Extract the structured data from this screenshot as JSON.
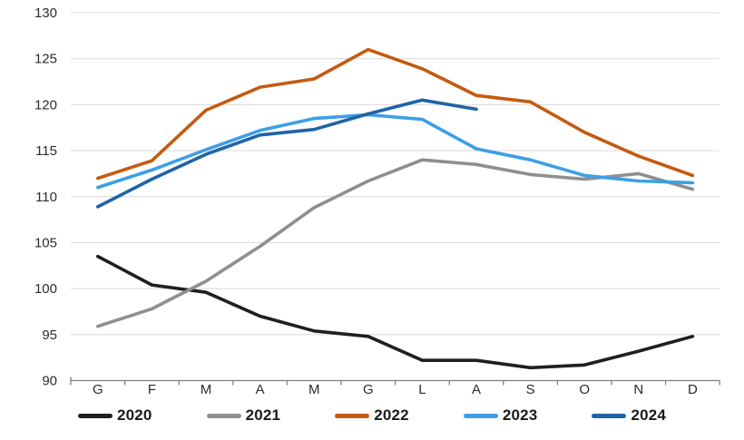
{
  "chart_data": {
    "type": "line",
    "title": "",
    "xlabel": "",
    "ylabel": "",
    "x_categories": [
      "G",
      "F",
      "M",
      "A",
      "M",
      "G",
      "L",
      "A",
      "S",
      "O",
      "N",
      "D"
    ],
    "ylim": [
      90,
      130
    ],
    "y_ticks": [
      90,
      95,
      100,
      105,
      110,
      115,
      120,
      125,
      130
    ],
    "y_tick_labels": [
      "90",
      "95",
      "100",
      "105",
      "110",
      "115",
      "120",
      "125",
      "130"
    ],
    "grid": true,
    "legend_position": "bottom",
    "series": [
      {
        "name": "2020",
        "color": "#1f1f1f",
        "values": [
          103.5,
          100.4,
          99.6,
          97.0,
          95.4,
          94.8,
          92.2,
          92.2,
          91.4,
          91.7,
          93.2,
          94.8
        ]
      },
      {
        "name": "2021",
        "color": "#8f8f8f",
        "values": [
          95.9,
          97.8,
          100.8,
          104.6,
          108.8,
          111.7,
          114.0,
          113.5,
          112.4,
          111.9,
          112.5,
          110.8
        ]
      },
      {
        "name": "2022",
        "color": "#c55a11",
        "values": [
          112.0,
          113.9,
          119.4,
          121.9,
          122.8,
          126.0,
          123.9,
          121.0,
          120.3,
          117.0,
          114.4,
          112.3
        ]
      },
      {
        "name": "2023",
        "color": "#3c9fe8",
        "values": [
          111.0,
          112.9,
          115.1,
          117.2,
          118.5,
          118.9,
          118.4,
          115.2,
          114.0,
          112.3,
          111.7,
          111.5
        ]
      },
      {
        "name": "2024",
        "color": "#2063a7",
        "values": [
          108.9,
          111.9,
          114.6,
          116.7,
          117.3,
          119.0,
          120.5,
          119.5
        ]
      }
    ],
    "colors": {
      "gridline": "#d9d9d9",
      "axis": "#808080",
      "tick_text": "#2b2b2b",
      "background": "#ffffff"
    }
  }
}
